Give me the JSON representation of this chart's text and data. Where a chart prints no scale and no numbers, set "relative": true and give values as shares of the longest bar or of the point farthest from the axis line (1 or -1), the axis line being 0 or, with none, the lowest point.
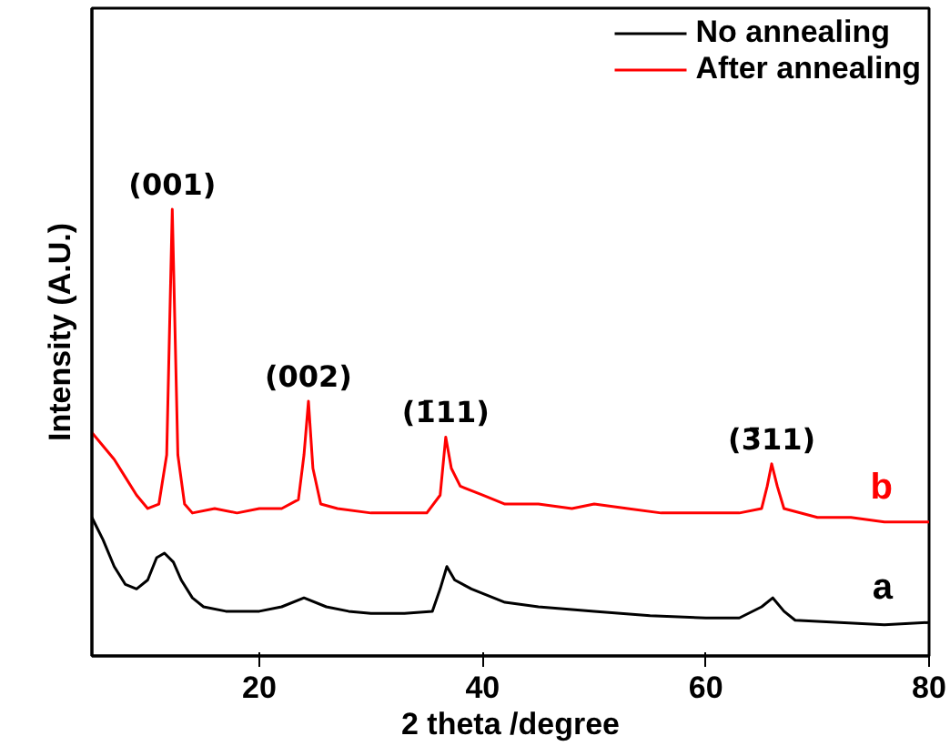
{
  "chart_data": {
    "type": "line",
    "relative": true,
    "xlabel": "2 theta /degree",
    "ylabel": "Intensity (A.U.)",
    "xlim": [
      5,
      80
    ],
    "xticks": [
      20,
      40,
      60,
      80
    ],
    "grid": false,
    "legend": "top right",
    "marker": "none",
    "line_style": "solid",
    "series": [
      {
        "name": "No annealing",
        "color": "#000000",
        "x": [
          5,
          6,
          7,
          8,
          9,
          10,
          10.8,
          11.5,
          12.3,
          13,
          14,
          15,
          17,
          20,
          22,
          24,
          26,
          28,
          30,
          33,
          35.5,
          36.2,
          36.8,
          37.5,
          39,
          42,
          45,
          50,
          55,
          60,
          63,
          65,
          66,
          67,
          68,
          72,
          76,
          80
        ],
        "values": [
          0.31,
          0.26,
          0.2,
          0.16,
          0.15,
          0.17,
          0.22,
          0.23,
          0.21,
          0.17,
          0.13,
          0.11,
          0.1,
          0.1,
          0.11,
          0.13,
          0.11,
          0.1,
          0.095,
          0.095,
          0.1,
          0.15,
          0.2,
          0.17,
          0.15,
          0.12,
          0.11,
          0.1,
          0.09,
          0.085,
          0.085,
          0.11,
          0.13,
          0.1,
          0.08,
          0.075,
          0.07,
          0.075
        ]
      },
      {
        "name": "After annealing",
        "color": "#ff0000",
        "x": [
          5,
          6,
          7,
          8,
          9,
          10,
          11,
          11.7,
          12.2,
          12.7,
          13.3,
          14,
          16,
          18,
          20,
          22,
          23.5,
          24,
          24.4,
          24.8,
          25.5,
          27,
          30,
          33,
          35,
          36.2,
          36.7,
          37.2,
          38,
          40,
          42,
          45,
          48,
          50,
          53,
          56,
          60,
          63,
          65,
          65.5,
          65.9,
          66.4,
          67,
          70,
          73,
          76,
          80
        ],
        "values": [
          0.5,
          0.47,
          0.44,
          0.4,
          0.36,
          0.33,
          0.34,
          0.45,
          1.0,
          0.45,
          0.34,
          0.32,
          0.33,
          0.32,
          0.33,
          0.33,
          0.35,
          0.45,
          0.57,
          0.42,
          0.34,
          0.33,
          0.32,
          0.32,
          0.32,
          0.36,
          0.49,
          0.42,
          0.38,
          0.36,
          0.34,
          0.34,
          0.33,
          0.34,
          0.33,
          0.32,
          0.32,
          0.32,
          0.33,
          0.38,
          0.43,
          0.38,
          0.33,
          0.31,
          0.31,
          0.3,
          0.3
        ]
      }
    ],
    "annotations": [
      {
        "text": "(001)",
        "x": 12.2,
        "y": 1.0
      },
      {
        "text": "(002)",
        "x": 24.4,
        "y": 0.57
      },
      {
        "text": "(1̄11)",
        "x": 36.7,
        "y": 0.49
      },
      {
        "text": "(3̄11)",
        "x": 65.9,
        "y": 0.43
      },
      "a",
      "b"
    ]
  }
}
